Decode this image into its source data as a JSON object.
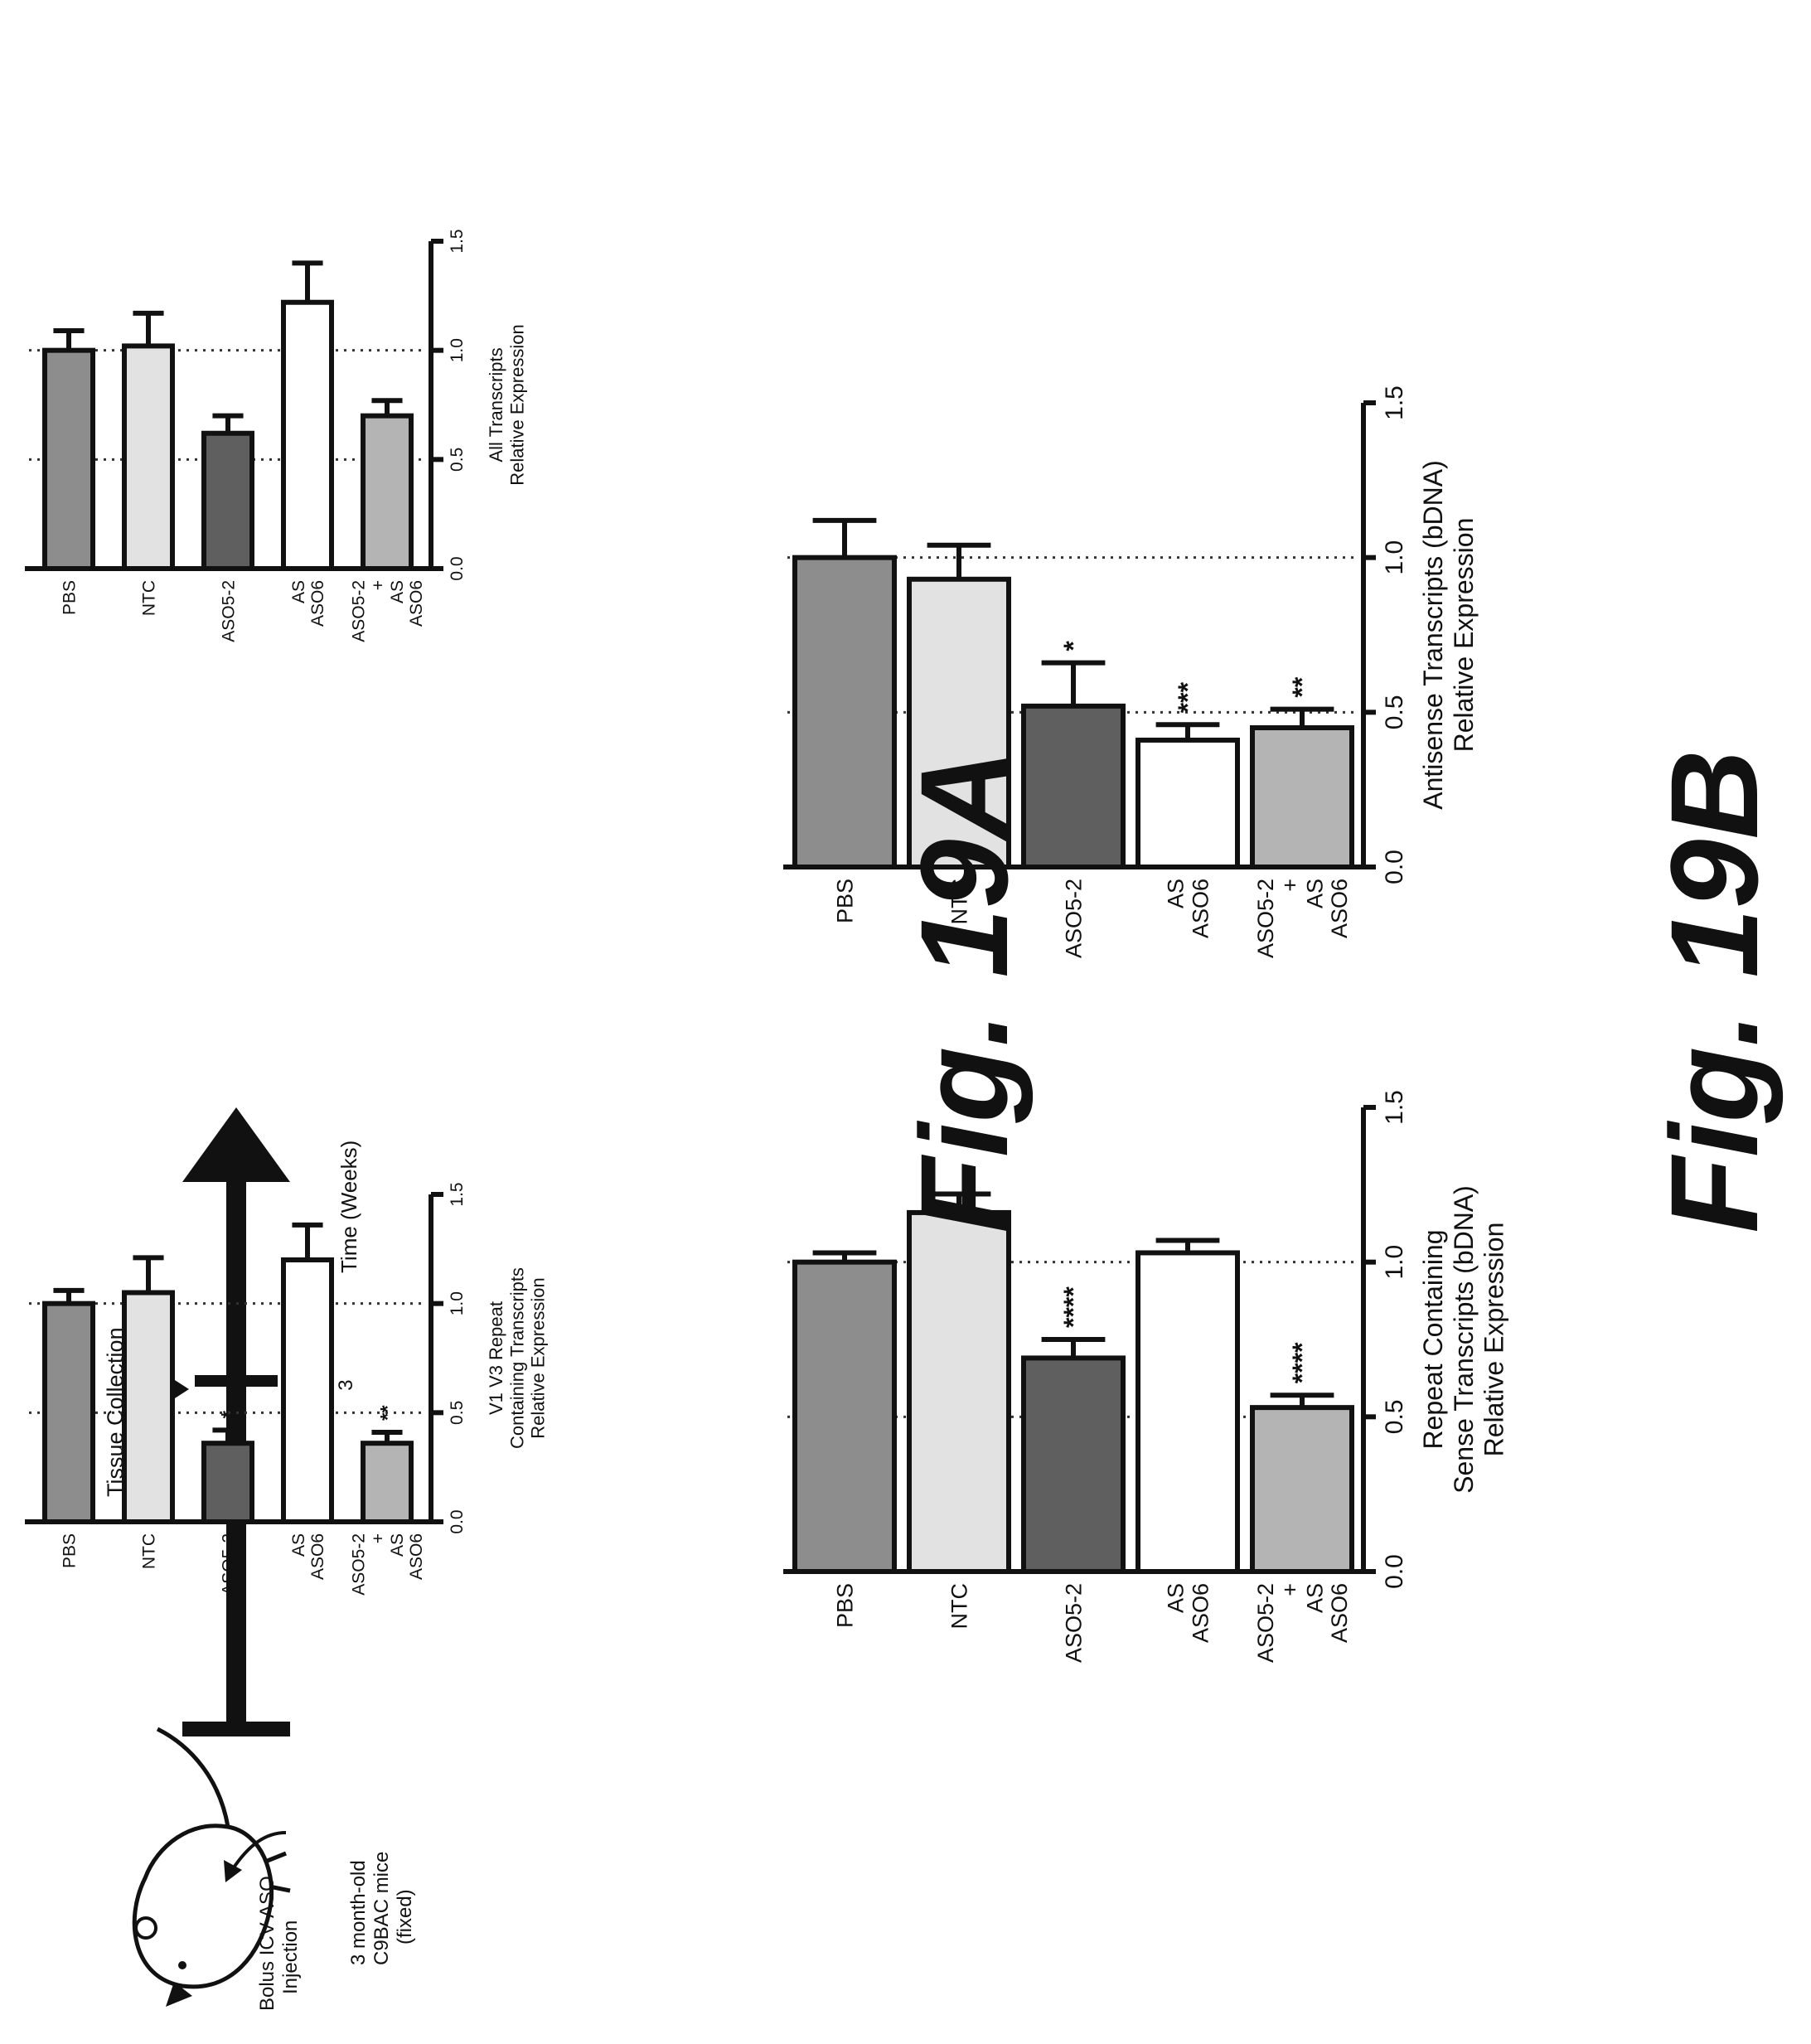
{
  "schematic": {
    "injection_label": [
      "Bolus ICV ASO",
      "Injection"
    ],
    "mouse_label": [
      "3 month-old",
      "C9BAC mice",
      "(fixed)"
    ],
    "collection_label": "Tissue Collection",
    "week_tick": "3",
    "time_label": "Time (Weeks)"
  },
  "figures": {
    "a_label": "Fig. 19A",
    "b_label": "Fig. 19B"
  },
  "colors": {
    "PBS": "#8d8d8d",
    "NTC": "#e2e2e2",
    "ASO5-2": "#5f5f5f",
    "AS ASO6": "#ffffff",
    "ASO5-2 + AS ASO6": "#b4b4b4"
  },
  "chart_data": [
    {
      "id": "fig19a-left",
      "type": "bar",
      "ylabel": [
        "V1 V3 Repeat",
        "Containing Transcripts",
        "Relative Expression"
      ],
      "categories": [
        [
          "PBS"
        ],
        [
          "NTC"
        ],
        [
          "ASO5-2"
        ],
        [
          "AS",
          "ASO6"
        ],
        [
          "ASO5-2",
          "+",
          "AS",
          "ASO6"
        ]
      ],
      "category_keys": [
        "PBS",
        "NTC",
        "ASO5-2",
        "AS ASO6",
        "ASO5-2 + AS ASO6"
      ],
      "values": [
        1.0,
        1.05,
        0.36,
        1.2,
        0.36
      ],
      "errors": [
        0.06,
        0.16,
        0.06,
        0.16,
        0.05
      ],
      "significance": [
        "",
        "",
        "*",
        "",
        "**"
      ],
      "ylim": [
        0,
        1.5
      ],
      "yticks": [
        "0.0",
        "0.5",
        "1.0",
        "1.5"
      ],
      "gridlines": [
        0.5,
        1.0
      ]
    },
    {
      "id": "fig19a-right",
      "type": "bar",
      "ylabel": [
        "All Transcripts",
        "Relative Expression"
      ],
      "categories": [
        [
          "PBS"
        ],
        [
          "NTC"
        ],
        [
          "ASO5-2"
        ],
        [
          "AS",
          "ASO6"
        ],
        [
          "ASO5-2",
          "+",
          "AS",
          "ASO6"
        ]
      ],
      "category_keys": [
        "PBS",
        "NTC",
        "ASO5-2",
        "AS ASO6",
        "ASO5-2 + AS ASO6"
      ],
      "values": [
        1.0,
        1.02,
        0.62,
        1.22,
        0.7
      ],
      "errors": [
        0.09,
        0.15,
        0.08,
        0.18,
        0.07
      ],
      "significance": [
        "",
        "",
        "",
        "",
        ""
      ],
      "ylim": [
        0,
        1.5
      ],
      "yticks": [
        "0.0",
        "0.5",
        "1.0",
        "1.5"
      ],
      "gridlines": [
        0.5,
        1.0
      ]
    },
    {
      "id": "fig19b-left",
      "type": "bar",
      "ylabel": [
        "Repeat Containing",
        "Sense Transcripts (bDNA)",
        "Relative Expression"
      ],
      "categories": [
        [
          "PBS"
        ],
        [
          "NTC"
        ],
        [
          "ASO5-2"
        ],
        [
          "AS",
          "ASO6"
        ],
        [
          "ASO5-2",
          "+",
          "AS",
          "ASO6"
        ]
      ],
      "category_keys": [
        "PBS",
        "NTC",
        "ASO5-2",
        "AS ASO6",
        "ASO5-2 + AS ASO6"
      ],
      "values": [
        1.0,
        1.16,
        0.69,
        1.03,
        0.53
      ],
      "errors": [
        0.03,
        0.06,
        0.06,
        0.04,
        0.04
      ],
      "significance": [
        "",
        "",
        "****",
        "",
        "****"
      ],
      "ylim": [
        0,
        1.5
      ],
      "yticks": [
        "0.0",
        "0.5",
        "1.0",
        "1.5"
      ],
      "gridlines": [
        0.5,
        1.0
      ]
    },
    {
      "id": "fig19b-right",
      "type": "bar",
      "ylabel": [
        "Antisense Transcripts (bDNA)",
        "Relative Expression"
      ],
      "categories": [
        [
          "PBS"
        ],
        [
          "NTC"
        ],
        [
          "ASO5-2"
        ],
        [
          "AS",
          "ASO6"
        ],
        [
          "ASO5-2",
          "+",
          "AS",
          "ASO6"
        ]
      ],
      "category_keys": [
        "PBS",
        "NTC",
        "ASO5-2",
        "AS ASO6",
        "ASO5-2 + AS ASO6"
      ],
      "values": [
        1.0,
        0.93,
        0.52,
        0.41,
        0.45
      ],
      "errors": [
        0.12,
        0.11,
        0.14,
        0.05,
        0.06
      ],
      "significance": [
        "",
        "",
        "*",
        "***",
        "**"
      ],
      "ylim": [
        0,
        1.5
      ],
      "yticks": [
        "0.0",
        "0.5",
        "1.0",
        "1.5"
      ],
      "gridlines": [
        0.5,
        1.0
      ]
    }
  ]
}
